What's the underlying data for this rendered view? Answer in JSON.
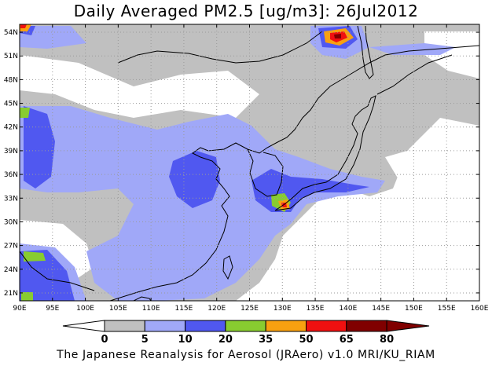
{
  "title": "Daily Averaged PM2.5 [ug/m3]: 26Jul2012",
  "credit": "The Japanese Reanalysis for Aerosol (JRAero) v1.0 MRI/KU_RIAM",
  "map": {
    "lon_ticks": [
      "90E",
      "95E",
      "100E",
      "105E",
      "110E",
      "115E",
      "120E",
      "125E",
      "130E",
      "135E",
      "140E",
      "145E",
      "150E",
      "155E",
      "160E"
    ],
    "lat_ticks": [
      "21N",
      "24N",
      "27N",
      "30N",
      "33N",
      "36N",
      "39N",
      "42N",
      "45N",
      "48N",
      "51N",
      "54N"
    ],
    "lon_range": [
      90,
      160
    ],
    "lat_range": [
      20,
      55
    ],
    "gridlines": "dotted"
  },
  "colorbar": {
    "labels": [
      "0",
      "5",
      "10",
      "20",
      "35",
      "50",
      "65",
      "80"
    ],
    "colors": [
      "#ffffff",
      "#c0c0c0",
      "#a0a8f8",
      "#5058f0",
      "#88cc30",
      "#f8a010",
      "#f01010",
      "#800000"
    ]
  }
}
